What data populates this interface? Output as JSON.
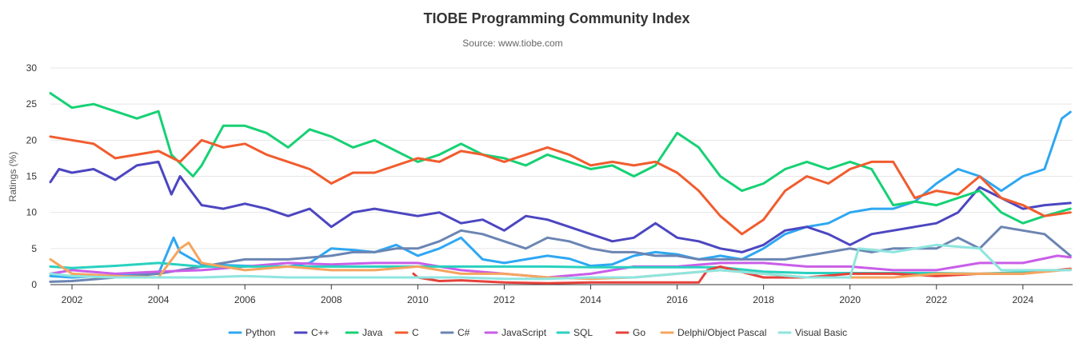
{
  "chart_data": {
    "type": "line",
    "title": "TIOBE Programming Community Index",
    "subtitle": "Source: www.tiobe.com",
    "ylabel": "Ratings (%)",
    "xlabel": "",
    "ylim": [
      0,
      30
    ],
    "yticks": [
      0,
      5,
      10,
      15,
      20,
      25,
      30
    ],
    "xlim": [
      2001.5,
      2025.15
    ],
    "xticks": [
      2002,
      2004,
      2006,
      2008,
      2010,
      2012,
      2014,
      2016,
      2018,
      2020,
      2022,
      2024
    ],
    "grid": "horizontal",
    "legend_position": "bottom",
    "series": [
      {
        "name": "Python",
        "color": "#2ea7f2",
        "x": [
          2001.5,
          2002,
          2003,
          2004,
          2004.35,
          2004.5,
          2005,
          2006,
          2007,
          2007.5,
          2008,
          2008.5,
          2009,
          2009.5,
          2010,
          2010.5,
          2011,
          2011.5,
          2012,
          2012.5,
          2013,
          2013.5,
          2014,
          2014.5,
          2015,
          2015.5,
          2016,
          2016.5,
          2017,
          2017.5,
          2018,
          2018.5,
          2019,
          2019.5,
          2020,
          2020.5,
          2021,
          2021.5,
          2022,
          2022.5,
          2023,
          2023.5,
          2024,
          2024.5,
          2024.9,
          2025.1
        ],
        "y": [
          1.2,
          1.0,
          1.3,
          1.5,
          6.5,
          4.5,
          2.8,
          2.6,
          2.5,
          3.0,
          5.0,
          4.8,
          4.5,
          5.5,
          4.0,
          5.0,
          6.5,
          3.5,
          3.0,
          3.5,
          4.0,
          3.6,
          2.6,
          2.8,
          4.0,
          4.5,
          4.2,
          3.5,
          4.0,
          3.5,
          5.0,
          7.0,
          8.0,
          8.5,
          10.0,
          10.5,
          10.5,
          11.5,
          14.0,
          16.0,
          15.0,
          13.0,
          15.0,
          16.0,
          23.0,
          23.9
        ]
      },
      {
        "name": "C++",
        "color": "#4c46c1",
        "x": [
          2001.5,
          2001.7,
          2002,
          2002.5,
          2003,
          2003.5,
          2004,
          2004.3,
          2004.5,
          2005,
          2005.5,
          2006,
          2006.5,
          2007,
          2007.5,
          2008,
          2008.5,
          2009,
          2009.5,
          2010,
          2010.5,
          2011,
          2011.5,
          2012,
          2012.5,
          2013,
          2013.5,
          2014,
          2014.5,
          2015,
          2015.5,
          2016,
          2016.5,
          2017,
          2017.5,
          2018,
          2018.5,
          2019,
          2019.5,
          2020,
          2020.5,
          2021,
          2021.5,
          2022,
          2022.5,
          2023,
          2023.5,
          2024,
          2024.5,
          2025.1
        ],
        "y": [
          14.2,
          16.0,
          15.5,
          16.0,
          14.5,
          16.5,
          17.0,
          12.5,
          15.0,
          11.0,
          10.5,
          11.2,
          10.5,
          9.5,
          10.5,
          8.0,
          10.0,
          10.5,
          10.0,
          9.5,
          10.0,
          8.5,
          9.0,
          7.5,
          9.5,
          9.0,
          8.0,
          7.0,
          6.0,
          6.5,
          8.5,
          6.5,
          6.0,
          5.0,
          4.5,
          5.5,
          7.5,
          8.0,
          7.0,
          5.5,
          7.0,
          7.5,
          8.0,
          8.5,
          10.0,
          13.5,
          12.0,
          10.5,
          11.0,
          11.3
        ]
      },
      {
        "name": "Java",
        "color": "#16d174",
        "x": [
          2001.5,
          2002,
          2002.5,
          2003,
          2003.5,
          2004,
          2004.3,
          2004.8,
          2005,
          2005.5,
          2006,
          2006.5,
          2007,
          2007.5,
          2008,
          2008.5,
          2009,
          2009.5,
          2010,
          2010.5,
          2011,
          2011.5,
          2012,
          2012.5,
          2013,
          2013.5,
          2014,
          2014.5,
          2015,
          2015.5,
          2016,
          2016.5,
          2017,
          2017.5,
          2018,
          2018.5,
          2019,
          2019.5,
          2020,
          2020.5,
          2021,
          2021.5,
          2022,
          2022.5,
          2023,
          2023.5,
          2024,
          2024.5,
          2025.1
        ],
        "y": [
          26.5,
          24.5,
          25.0,
          24.0,
          23.0,
          24.0,
          18.0,
          15.0,
          16.5,
          22.0,
          22.0,
          21.0,
          19.0,
          21.5,
          20.5,
          19.0,
          20.0,
          18.5,
          17.0,
          18.0,
          19.5,
          18.0,
          17.5,
          16.5,
          18.0,
          17.0,
          16.0,
          16.5,
          15.0,
          16.5,
          21.0,
          19.0,
          15.0,
          13.0,
          14.0,
          16.0,
          17.0,
          16.0,
          17.0,
          16.0,
          11.0,
          11.5,
          11.0,
          12.0,
          13.0,
          10.0,
          8.5,
          9.5,
          10.5
        ]
      },
      {
        "name": "C",
        "color": "#f15c2e",
        "x": [
          2001.5,
          2002,
          2002.5,
          2003,
          2003.5,
          2004,
          2004.5,
          2005,
          2005.5,
          2006,
          2006.5,
          2007,
          2007.5,
          2008,
          2008.5,
          2009,
          2009.5,
          2010,
          2010.5,
          2011,
          2011.5,
          2012,
          2012.5,
          2013,
          2013.5,
          2014,
          2014.5,
          2015,
          2015.5,
          2016,
          2016.5,
          2017,
          2017.5,
          2018,
          2018.5,
          2019,
          2019.5,
          2020,
          2020.5,
          2021,
          2021.5,
          2022,
          2022.5,
          2023,
          2023.5,
          2024,
          2024.5,
          2025.1
        ],
        "y": [
          20.5,
          20.0,
          19.5,
          17.5,
          18.0,
          18.5,
          17.0,
          20.0,
          19.0,
          19.5,
          18.0,
          17.0,
          16.0,
          14.0,
          15.5,
          15.5,
          16.5,
          17.5,
          17.0,
          18.5,
          18.0,
          17.0,
          18.0,
          19.0,
          18.0,
          16.5,
          17.0,
          16.5,
          17.0,
          15.5,
          13.0,
          9.5,
          7.0,
          9.0,
          13.0,
          15.0,
          14.0,
          16.0,
          17.0,
          17.0,
          12.0,
          13.0,
          12.5,
          15.0,
          12.0,
          11.0,
          9.5,
          10.0
        ]
      },
      {
        "name": "C#",
        "color": "#6b85b3",
        "x": [
          2001.5,
          2002,
          2003,
          2004,
          2005,
          2006,
          2007,
          2008,
          2008.5,
          2009,
          2009.5,
          2010,
          2010.5,
          2011,
          2011.5,
          2012,
          2012.5,
          2013,
          2013.5,
          2014,
          2014.5,
          2015,
          2015.5,
          2016,
          2016.5,
          2017,
          2017.5,
          2018,
          2018.5,
          2019,
          2019.5,
          2020,
          2020.5,
          2021,
          2021.5,
          2022,
          2022.5,
          2023,
          2023.5,
          2024,
          2024.5,
          2025.1
        ],
        "y": [
          0.4,
          0.5,
          1.0,
          1.5,
          2.5,
          3.5,
          3.5,
          4.0,
          4.5,
          4.5,
          5.0,
          5.0,
          6.0,
          7.5,
          7.0,
          6.0,
          5.0,
          6.5,
          6.0,
          5.0,
          4.5,
          4.5,
          4.0,
          4.0,
          3.5,
          3.5,
          3.5,
          3.5,
          3.5,
          4.0,
          4.5,
          5.0,
          4.5,
          5.0,
          5.0,
          5.0,
          6.5,
          5.0,
          8.0,
          7.5,
          7.0,
          4.0
        ]
      },
      {
        "name": "JavaScript",
        "color": "#c95ee8",
        "x": [
          2001.5,
          2002,
          2003,
          2004,
          2005,
          2006,
          2007,
          2008,
          2009,
          2010,
          2011,
          2012,
          2013,
          2014,
          2015,
          2016,
          2017,
          2018,
          2019,
          2020,
          2021,
          2022,
          2023,
          2024,
          2024.8,
          2025.1
        ],
        "y": [
          1.5,
          2.0,
          1.5,
          1.8,
          2.0,
          2.5,
          3.0,
          2.8,
          3.0,
          3.0,
          2.0,
          1.5,
          1.0,
          1.5,
          2.5,
          2.5,
          3.0,
          3.0,
          2.5,
          2.5,
          2.0,
          2.0,
          3.0,
          3.0,
          4.0,
          3.8
        ]
      },
      {
        "name": "SQL",
        "color": "#29d1bf",
        "x": [
          2001.5,
          2002,
          2003,
          2004,
          2005,
          2006,
          2007,
          2008,
          2009,
          2010,
          2011,
          2012,
          2013,
          2014,
          2015,
          2016,
          2017,
          2018,
          2019,
          2020,
          2021,
          2022,
          2023,
          2024,
          2025.1
        ],
        "y": [
          2.5,
          2.3,
          2.6,
          3.0,
          2.5,
          2.5,
          2.5,
          2.5,
          2.5,
          2.5,
          2.5,
          2.5,
          2.5,
          2.4,
          2.4,
          2.4,
          2.4,
          1.8,
          1.6,
          1.6,
          1.6,
          1.6,
          1.5,
          1.7,
          2.1
        ]
      },
      {
        "name": "Go",
        "color": "#e6413b",
        "x": [
          2009.9,
          2010,
          2010.5,
          2011,
          2012,
          2013,
          2014,
          2015,
          2016,
          2016.5,
          2016.7,
          2017,
          2018,
          2019,
          2020,
          2021,
          2022,
          2023,
          2024,
          2025.1
        ],
        "y": [
          1.5,
          1.0,
          0.5,
          0.6,
          0.3,
          0.2,
          0.3,
          0.3,
          0.3,
          0.3,
          2.0,
          2.5,
          1.0,
          1.0,
          1.5,
          1.5,
          1.2,
          1.5,
          1.5,
          2.2
        ]
      },
      {
        "name": "Delphi/Object Pascal",
        "color": "#f5a55e",
        "x": [
          2001.5,
          2002,
          2003,
          2004,
          2004.5,
          2004.7,
          2005,
          2006,
          2007,
          2008,
          2009,
          2010,
          2011,
          2012,
          2013,
          2014,
          2015,
          2016,
          2017,
          2018,
          2019,
          2020,
          2021,
          2022,
          2023,
          2024,
          2025.1
        ],
        "y": [
          3.5,
          1.5,
          1.2,
          1.0,
          5.0,
          5.8,
          3.0,
          2.0,
          2.5,
          2.0,
          2.0,
          2.5,
          1.5,
          1.5,
          1.0,
          0.8,
          1.0,
          1.5,
          2.0,
          1.5,
          1.0,
          1.0,
          1.0,
          1.5,
          1.5,
          1.5,
          2.1
        ]
      },
      {
        "name": "Visual Basic",
        "color": "#8ee5df",
        "x": [
          2001.5,
          2002,
          2003,
          2004,
          2005,
          2006,
          2007,
          2008,
          2009,
          2010,
          2011,
          2012,
          2013,
          2014,
          2015,
          2016,
          2017,
          2018,
          2019,
          2020,
          2020.2,
          2021,
          2022,
          2023,
          2023.5,
          2024,
          2025.1
        ],
        "y": [
          1.5,
          1.2,
          1.0,
          1.0,
          1.0,
          1.2,
          1.0,
          1.0,
          1.0,
          1.0,
          1.0,
          0.8,
          0.8,
          1.0,
          1.0,
          1.5,
          2.0,
          1.5,
          1.0,
          1.0,
          5.0,
          4.5,
          5.5,
          5.0,
          2.0,
          2.0,
          2.0
        ]
      }
    ]
  }
}
